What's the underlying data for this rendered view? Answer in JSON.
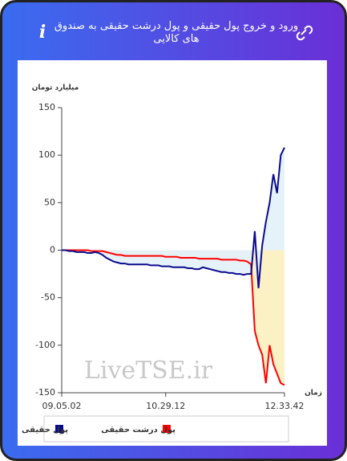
{
  "chart_data": {
    "type": "line",
    "title": "ورود و خروج پول حقیقی و پول درشت حقیقی به صندوق های کالایی",
    "y_label": "میلیارد تومان",
    "x_label": "زمان",
    "watermark": "LiveTSE.ir",
    "categories": [
      "09.05.02",
      null,
      null,
      null,
      null,
      null,
      null,
      null,
      null,
      null,
      null,
      null,
      null,
      null,
      null,
      null,
      null,
      null,
      null,
      null,
      null,
      null,
      null,
      null,
      null,
      null,
      null,
      null,
      "10.29.12",
      null,
      null,
      null,
      null,
      null,
      null,
      null,
      null,
      null,
      null,
      null,
      null,
      null,
      null,
      null,
      null,
      null,
      null,
      null,
      null,
      null,
      null,
      null,
      null,
      null,
      null,
      null,
      null,
      null,
      null,
      null,
      "12.33.42"
    ],
    "series": [
      {
        "name": "پول حقیقی",
        "color": "#0a0a8c",
        "fill": "#e3f1fa",
        "values": [
          0,
          0,
          -1,
          -1,
          -2,
          -2,
          -2,
          -3,
          -3,
          -2,
          -3,
          -5,
          -8,
          -10,
          -12,
          -13,
          -14,
          -14,
          -15,
          -15,
          -15,
          -15,
          -15,
          -15,
          -16,
          -16,
          -16,
          -17,
          -17,
          -17,
          -18,
          -18,
          -18,
          -18,
          -19,
          -19,
          -20,
          -20,
          -18,
          -19,
          -20,
          -21,
          -22,
          -23,
          -23,
          -24,
          -24,
          -25,
          -25,
          -26,
          -25,
          -25,
          20,
          -40,
          5,
          30,
          50,
          80,
          60,
          100,
          108
        ]
      },
      {
        "name": "پول درشت حقیقی",
        "color": "#ff0000",
        "fill": "#fbf0bf",
        "values": [
          0,
          0,
          0,
          0,
          0,
          0,
          0,
          0,
          -1,
          -1,
          -1,
          -1,
          -2,
          -3,
          -4,
          -5,
          -5,
          -6,
          -6,
          -6,
          -6,
          -6,
          -6,
          -6,
          -6,
          -6,
          -6,
          -6,
          -7,
          -7,
          -7,
          -7,
          -8,
          -8,
          -8,
          -8,
          -8,
          -9,
          -9,
          -9,
          -9,
          -9,
          -9,
          -10,
          -10,
          -10,
          -10,
          -10,
          -11,
          -11,
          -12,
          -15,
          -85,
          -100,
          -110,
          -140,
          -100,
          -120,
          -130,
          -140,
          -142
        ]
      }
    ],
    "ylim": [
      -150,
      150
    ],
    "yticks": [
      -150,
      -100,
      -50,
      0,
      50,
      100,
      150
    ]
  }
}
